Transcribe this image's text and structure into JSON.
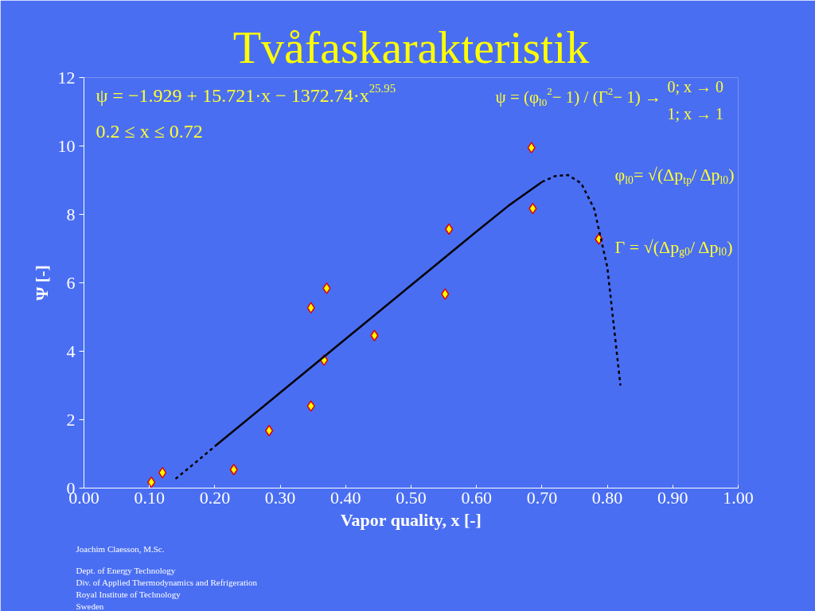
{
  "chart_data": {
    "type": "scatter",
    "title": "Tvåfaskarakteristik",
    "xlabel": "Vapor quality, x [-]",
    "ylabel": "Ψ [-]",
    "xlim": [
      0,
      1
    ],
    "ylim": [
      0,
      12
    ],
    "xticks": [
      {
        "value": 0,
        "label": "0.00"
      },
      {
        "value": 0.1,
        "label": "0.10"
      },
      {
        "value": 0.2,
        "label": "0.20"
      },
      {
        "value": 0.3,
        "label": "0.30"
      },
      {
        "value": 0.4,
        "label": "0.40"
      },
      {
        "value": 0.5,
        "label": "0.50"
      },
      {
        "value": 0.6,
        "label": "0.60"
      },
      {
        "value": 0.7,
        "label": "0.70"
      },
      {
        "value": 0.8,
        "label": "0.80"
      },
      {
        "value": 0.9,
        "label": "0.90"
      },
      {
        "value": 1,
        "label": "1.00"
      }
    ],
    "yticks": [
      0,
      2,
      4,
      6,
      8,
      10,
      12
    ],
    "grid": false,
    "marker": "diamond",
    "series": [
      {
        "color": "#ffff00",
        "x": [
          0.103,
          0.12,
          0.229,
          0.283,
          0.347,
          0.347,
          0.367,
          0.371,
          0.444,
          0.552,
          0.558,
          0.684,
          0.686,
          0.787
        ],
        "values": [
          0.17,
          0.45,
          0.54,
          1.68,
          2.4,
          5.27,
          3.74,
          5.84,
          4.46,
          5.67,
          7.57,
          9.95,
          8.17,
          7.28
        ]
      },
      {
        "type": "line",
        "marker": "none",
        "color": "#000000",
        "line_style": "solid",
        "x": [
          0.2,
          0.3,
          0.4,
          0.5,
          0.6,
          0.65,
          0.7
        ],
        "values": [
          1.22,
          2.79,
          4.36,
          5.93,
          7.5,
          8.27,
          8.95
        ]
      },
      {
        "type": "line",
        "marker": "none",
        "color": "#000000",
        "line_style": "dashed",
        "x": [
          0.14,
          0.17,
          0.2,
          null,
          0.7,
          0.72,
          0.74,
          0.76,
          0.78,
          0.8,
          0.82
        ],
        "values": [
          0.27,
          0.74,
          1.22,
          null,
          8.95,
          9.12,
          9.15,
          8.91,
          8.16,
          6.45,
          3.0
        ]
      }
    ],
    "annotations": [
      "ψ = −1.929 + 15.721·x − 1372.74·x$^{25.95}$",
      "0.2 ≤ x ≤ 0.72",
      "ψ = (φ$_{l0}$$^{2}$− 1) / (Γ$^{2}$− 1) →",
      "0; x → 0",
      "1; x → 1",
      "φ$_{l0}$= √(Δp$_{tp}$/ Δp$_{l0}$)",
      "Γ = √(Δp$_{g0}$/ Δp$_{l0}$)",
      "Joachim Claesson, M.Sc.",
      "Dept. of Energy Technology",
      "Div. of Applied Thermodynamics and Refrigeration",
      "Royal Institute of Technology",
      "Sweden"
    ]
  }
}
